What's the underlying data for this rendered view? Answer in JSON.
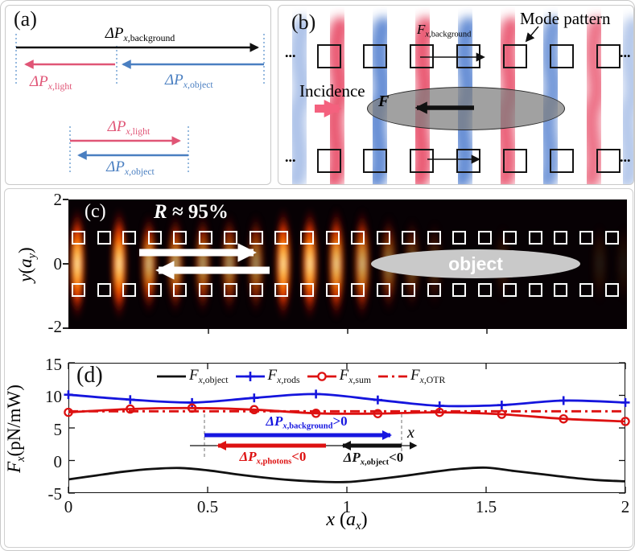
{
  "panel_a": {
    "label": "(a)",
    "top_group": {
      "background_label": [
        [
          "i",
          "ΔP"
        ],
        [
          "subi",
          "x"
        ],
        [
          "sub",
          ",background"
        ]
      ],
      "light_label": [
        [
          "i",
          "ΔP"
        ],
        [
          "subi",
          "x"
        ],
        [
          "sub",
          ",light"
        ]
      ],
      "object_label": [
        [
          "i",
          "ΔP"
        ],
        [
          "subi",
          "x"
        ],
        [
          "sub",
          ",object"
        ]
      ]
    },
    "bottom_group": {
      "light_label": [
        [
          "i",
          "ΔP"
        ],
        [
          "subi",
          "x"
        ],
        [
          "sub",
          ",light"
        ]
      ],
      "object_label": [
        [
          "i",
          "ΔP"
        ],
        [
          "subi",
          "x"
        ],
        [
          "sub",
          ",object"
        ]
      ]
    },
    "colors": {
      "light": "#e05576",
      "object": "#4a7fc1",
      "background": "#111111",
      "guides": "#74a3d4"
    }
  },
  "panel_b": {
    "label": "(b)",
    "mode_pattern_label": "Mode pattern",
    "incidence_label": "Incidence",
    "force_background_label": [
      [
        "i",
        "F"
      ],
      [
        "subi",
        "x"
      ],
      [
        "sub",
        ",background"
      ]
    ],
    "force_label": [
      [
        "bi",
        "F"
      ]
    ],
    "ellipsis": "...",
    "colors": {
      "red_lobe": "#e8506a",
      "blue_lobe": "#5b86d2",
      "incidence_arrow": "#f4617e",
      "object_fill": "rgba(125,125,125,0.72)"
    }
  },
  "panel_c": {
    "label": "(c)",
    "reflectance_label": [
      [
        "bi",
        "R"
      ],
      [
        "b",
        " ≈ 95%"
      ]
    ],
    "object_label": "object",
    "y_ticks": [
      "2",
      "0",
      "-2"
    ],
    "y_axis_label": [
      [
        "i",
        "y"
      ],
      [
        "n",
        "("
      ],
      [
        "i",
        "a"
      ],
      [
        "subi",
        "y"
      ],
      [
        "n",
        ")"
      ]
    ]
  },
  "panel_d": {
    "label": "(d)",
    "y_ticks": [
      "15",
      "10",
      "5",
      "0",
      "-5"
    ],
    "x_ticks": [
      "0",
      "0.5",
      "1",
      "1.5",
      "2"
    ],
    "y_axis_label": [
      [
        "i",
        "F"
      ],
      [
        "subi",
        "x"
      ],
      [
        "n",
        "(pN/mW)"
      ]
    ],
    "x_axis_label": [
      [
        "i",
        "x"
      ],
      [
        "n",
        " ("
      ],
      [
        "i",
        "a"
      ],
      [
        "subi",
        "x"
      ],
      [
        "n",
        ")"
      ]
    ],
    "annotations": {
      "background": [
        [
          "i",
          "ΔP"
        ],
        [
          "subi",
          "x"
        ],
        [
          "sub",
          ",background"
        ],
        [
          "n",
          ">0"
        ]
      ],
      "photons": [
        [
          "i",
          "ΔP"
        ],
        [
          "subi",
          "x"
        ],
        [
          "sub",
          ",photons"
        ],
        [
          "n",
          "<0"
        ]
      ],
      "object": [
        [
          "i",
          "ΔP"
        ],
        [
          "subi",
          "x"
        ],
        [
          "sub",
          ",object"
        ],
        [
          "n",
          "<0"
        ]
      ],
      "x_axis": [
        [
          "i",
          "x"
        ]
      ],
      "colors": {
        "background": "#1616e0",
        "photons": "#dd1111",
        "object": "#111111"
      }
    }
  },
  "chart_data": {
    "type": "line",
    "title": "",
    "xlabel": "x (a_x)",
    "ylabel": "F_x (pN/mW)",
    "xlim": [
      0,
      2
    ],
    "ylim": [
      -5,
      15
    ],
    "x_ticks": [
      0,
      0.5,
      1,
      1.5,
      2
    ],
    "y_ticks": [
      15,
      10,
      5,
      0,
      -5
    ],
    "grid": false,
    "legend_position": "top-inside-horizontal",
    "series": [
      {
        "name": "F_x,object",
        "label_segs": [
          [
            "i",
            "F"
          ],
          [
            "subi",
            "x"
          ],
          [
            "sub",
            ",object"
          ]
        ],
        "color": "#111111",
        "marker": "none",
        "dash": "solid",
        "x": [
          0,
          0.1,
          0.2,
          0.3,
          0.4,
          0.5,
          0.6,
          0.7,
          0.8,
          0.9,
          1.0,
          1.1,
          1.2,
          1.3,
          1.4,
          1.5,
          1.6,
          1.7,
          1.8,
          1.9,
          2.0
        ],
        "y": [
          -2.9,
          -2.3,
          -1.7,
          -1.3,
          -1.15,
          -1.5,
          -2.1,
          -2.6,
          -3.0,
          -3.25,
          -3.3,
          -2.9,
          -2.4,
          -1.8,
          -1.3,
          -1.1,
          -1.6,
          -2.1,
          -2.6,
          -3.0,
          -3.2
        ]
      },
      {
        "name": "F_x,rods",
        "label_segs": [
          [
            "i",
            "F"
          ],
          [
            "subi",
            "x"
          ],
          [
            "sub",
            ",rods"
          ]
        ],
        "color": "#1515dd",
        "marker": "plus",
        "dash": "solid",
        "x": [
          0,
          0.222,
          0.444,
          0.667,
          0.889,
          1.111,
          1.333,
          1.556,
          1.778,
          2.0
        ],
        "y": [
          10.1,
          9.35,
          8.9,
          9.6,
          10.2,
          9.3,
          8.4,
          8.5,
          9.2,
          8.9
        ]
      },
      {
        "name": "F_x,sum",
        "label_segs": [
          [
            "i",
            "F"
          ],
          [
            "subi",
            "x"
          ],
          [
            "sub",
            ",sum"
          ]
        ],
        "color": "#dd1111",
        "marker": "circle",
        "dash": "solid",
        "x": [
          0,
          0.222,
          0.444,
          0.667,
          0.889,
          1.111,
          1.333,
          1.556,
          1.778,
          2.0
        ],
        "y": [
          7.4,
          7.9,
          8.05,
          7.8,
          7.25,
          7.2,
          7.4,
          7.1,
          6.4,
          6.0
        ]
      },
      {
        "name": "F_x,OTR",
        "label_segs": [
          [
            "i",
            "F"
          ],
          [
            "subi",
            "x"
          ],
          [
            "sub",
            ",OTR"
          ]
        ],
        "color": "#dd1111",
        "marker": "none",
        "dash": "dashdot",
        "x": [
          0,
          2
        ],
        "y": [
          7.55,
          7.55
        ]
      }
    ]
  }
}
